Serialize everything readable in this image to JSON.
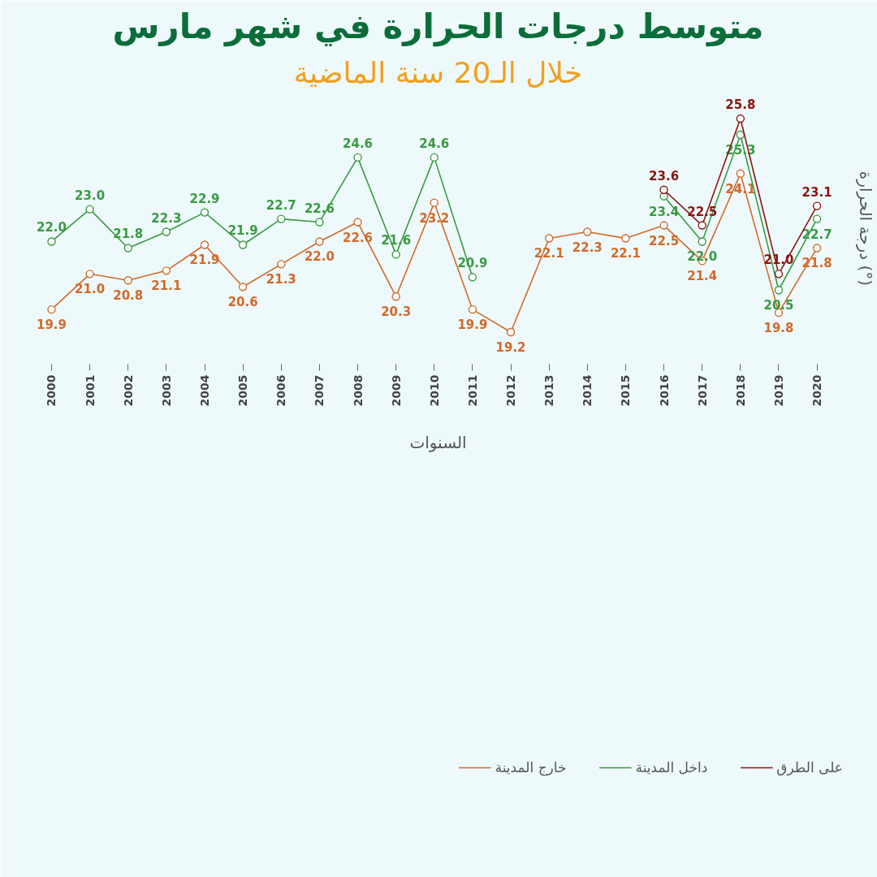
{
  "chart_data": {
    "type": "line",
    "title": "متوسط درجات الحرارة في شهر مارس",
    "subtitle": "خلال الـ20 سنة الماضية",
    "xlabel": "السنوات",
    "ylabel": "درجة الحرارة (°)",
    "categories": [
      "2000",
      "2001",
      "2002",
      "2003",
      "2004",
      "2005",
      "2006",
      "2007",
      "2008",
      "2009",
      "2010",
      "2011",
      "2012",
      "2013",
      "2014",
      "2015",
      "2016",
      "2017",
      "2018",
      "2019",
      "2020"
    ],
    "series": [
      {
        "name": "خارج المدينة",
        "color": "#d2692a",
        "values": [
          19.9,
          21.0,
          20.8,
          21.1,
          21.9,
          20.6,
          21.3,
          22.0,
          22.6,
          20.3,
          23.2,
          19.9,
          19.2,
          22.1,
          22.3,
          22.1,
          22.5,
          21.4,
          24.1,
          19.8,
          21.8
        ],
        "value_labels": [
          "19.9",
          "21.0",
          "20.8",
          "21.1",
          "21.9",
          "20.6",
          "21.3",
          "22.0",
          "22.6",
          "20.3",
          "23.2",
          "19.9",
          "19.2",
          "22.1",
          "22.3",
          "22.1",
          "22.5",
          "21.4",
          "24.1",
          "19.8",
          "21.8"
        ]
      },
      {
        "name": "داخل المدينة",
        "color": "#3a9a42",
        "values": [
          22.0,
          23.0,
          21.8,
          22.3,
          22.9,
          21.9,
          22.7,
          22.6,
          24.6,
          21.6,
          24.6,
          20.9,
          null,
          null,
          null,
          null,
          23.4,
          22.0,
          25.3,
          20.5,
          22.7
        ],
        "value_labels": [
          "22.0",
          "23.0",
          "21.8",
          "22.3",
          "22.9",
          "21.9",
          "22.7",
          "22.6",
          "24.6",
          "21.6",
          "24.6",
          "20.9",
          null,
          null,
          null,
          null,
          "23.4",
          "22.0",
          "25.3",
          "20.5",
          "22.7"
        ]
      },
      {
        "name": "على الطرق",
        "color": "#8b1410",
        "values": [
          null,
          null,
          null,
          null,
          null,
          null,
          null,
          null,
          null,
          null,
          null,
          null,
          null,
          null,
          null,
          null,
          23.6,
          22.5,
          25.8,
          21.0,
          23.1
        ],
        "value_labels": [
          null,
          null,
          null,
          null,
          null,
          null,
          null,
          null,
          null,
          null,
          null,
          null,
          null,
          null,
          null,
          null,
          "23.6",
          "22.5",
          "25.8",
          "21.0",
          "23.1"
        ]
      }
    ],
    "marker": "circle",
    "line_style": "solid",
    "grid": false,
    "legend": "bottom right",
    "tick_labels": "x"
  }
}
